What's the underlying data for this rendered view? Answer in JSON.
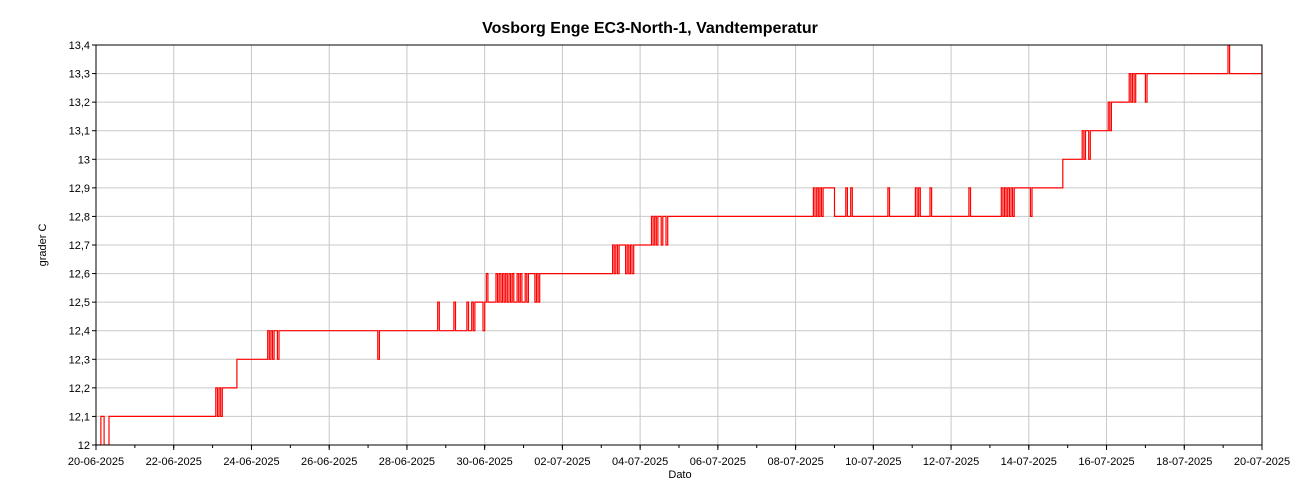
{
  "chart_data": {
    "type": "line",
    "title": "Vosborg Enge EC3-North-1, Vandtemperatur",
    "xlabel": "Dato",
    "ylabel": "grader C",
    "grid": true,
    "x_start": "2025-06-20",
    "x_end": "2025-07-20",
    "xticks": [
      "20-06-2025",
      "22-06-2025",
      "24-06-2025",
      "26-06-2025",
      "28-06-2025",
      "30-06-2025",
      "02-07-2025",
      "04-07-2025",
      "06-07-2025",
      "08-07-2025",
      "10-07-2025",
      "12-07-2025",
      "14-07-2025",
      "16-07-2025",
      "18-07-2025",
      "20-07-2025"
    ],
    "ylim": [
      12,
      13.4
    ],
    "yticks": [
      "12",
      "12,1",
      "12,2",
      "12,3",
      "12,4",
      "12,5",
      "12,6",
      "12,7",
      "12,8",
      "12,9",
      "13",
      "13,1",
      "13,2",
      "13,3",
      "13,4"
    ],
    "series": [
      {
        "color": "#ff0000",
        "points": [
          [
            "2025-06-20T00:00",
            12.0
          ],
          [
            "2025-06-20T03:00",
            12.1
          ],
          [
            "2025-06-20T05:00",
            12.0
          ],
          [
            "2025-06-20T07:00",
            12.0
          ],
          [
            "2025-06-20T08:00",
            12.1
          ],
          [
            "2025-06-21T12:00",
            12.1
          ],
          [
            "2025-06-22T12:00",
            12.1
          ],
          [
            "2025-06-23T00:00",
            12.1
          ],
          [
            "2025-06-23T02:00",
            12.2
          ],
          [
            "2025-06-23T03:00",
            12.1
          ],
          [
            "2025-06-23T04:00",
            12.2
          ],
          [
            "2025-06-23T05:00",
            12.1
          ],
          [
            "2025-06-23T06:00",
            12.2
          ],
          [
            "2025-06-23T12:00",
            12.2
          ],
          [
            "2025-06-23T15:00",
            12.3
          ],
          [
            "2025-06-24T08:00",
            12.3
          ],
          [
            "2025-06-24T10:00",
            12.4
          ],
          [
            "2025-06-24T11:00",
            12.3
          ],
          [
            "2025-06-24T12:00",
            12.4
          ],
          [
            "2025-06-24T13:00",
            12.3
          ],
          [
            "2025-06-24T14:00",
            12.4
          ],
          [
            "2025-06-24T16:00",
            12.3
          ],
          [
            "2025-06-24T17:00",
            12.4
          ],
          [
            "2025-06-26T00:00",
            12.4
          ],
          [
            "2025-06-27T05:00",
            12.4
          ],
          [
            "2025-06-27T06:00",
            12.3
          ],
          [
            "2025-06-27T07:00",
            12.4
          ],
          [
            "2025-06-28T18:00",
            12.4
          ],
          [
            "2025-06-28T19:00",
            12.5
          ],
          [
            "2025-06-28T20:00",
            12.4
          ],
          [
            "2025-06-29T04:00",
            12.4
          ],
          [
            "2025-06-29T05:00",
            12.5
          ],
          [
            "2025-06-29T06:00",
            12.4
          ],
          [
            "2025-06-29T12:00",
            12.4
          ],
          [
            "2025-06-29T13:00",
            12.5
          ],
          [
            "2025-06-29T14:00",
            12.4
          ],
          [
            "2025-06-29T16:00",
            12.5
          ],
          [
            "2025-06-29T17:00",
            12.4
          ],
          [
            "2025-06-29T18:00",
            12.5
          ],
          [
            "2025-06-29T23:00",
            12.4
          ],
          [
            "2025-06-30T00:00",
            12.5
          ],
          [
            "2025-06-30T01:00",
            12.6
          ],
          [
            "2025-06-30T02:00",
            12.5
          ],
          [
            "2025-06-30T06:00",
            12.5
          ],
          [
            "2025-06-30T07:00",
            12.6
          ],
          [
            "2025-06-30T08:00",
            12.5
          ],
          [
            "2025-06-30T09:00",
            12.6
          ],
          [
            "2025-06-30T10:00",
            12.5
          ],
          [
            "2025-06-30T11:00",
            12.6
          ],
          [
            "2025-06-30T12:00",
            12.5
          ],
          [
            "2025-06-30T13:00",
            12.6
          ],
          [
            "2025-06-30T14:00",
            12.5
          ],
          [
            "2025-06-30T15:00",
            12.6
          ],
          [
            "2025-06-30T16:00",
            12.5
          ],
          [
            "2025-06-30T17:00",
            12.6
          ],
          [
            "2025-06-30T18:00",
            12.5
          ],
          [
            "2025-06-30T20:00",
            12.6
          ],
          [
            "2025-06-30T21:00",
            12.5
          ],
          [
            "2025-06-30T22:00",
            12.6
          ],
          [
            "2025-06-30T23:00",
            12.5
          ],
          [
            "2025-07-01T01:00",
            12.6
          ],
          [
            "2025-07-01T02:00",
            12.5
          ],
          [
            "2025-07-01T03:00",
            12.6
          ],
          [
            "2025-07-01T06:00",
            12.6
          ],
          [
            "2025-07-01T07:00",
            12.5
          ],
          [
            "2025-07-01T08:00",
            12.6
          ],
          [
            "2025-07-01T09:00",
            12.5
          ],
          [
            "2025-07-01T10:00",
            12.6
          ],
          [
            "2025-07-02T00:00",
            12.6
          ],
          [
            "2025-07-03T06:00",
            12.6
          ],
          [
            "2025-07-03T07:00",
            12.7
          ],
          [
            "2025-07-03T08:00",
            12.6
          ],
          [
            "2025-07-03T09:00",
            12.7
          ],
          [
            "2025-07-03T10:00",
            12.6
          ],
          [
            "2025-07-03T11:00",
            12.7
          ],
          [
            "2025-07-03T14:00",
            12.7
          ],
          [
            "2025-07-03T15:00",
            12.6
          ],
          [
            "2025-07-03T16:00",
            12.7
          ],
          [
            "2025-07-03T17:00",
            12.6
          ],
          [
            "2025-07-03T18:00",
            12.7
          ],
          [
            "2025-07-03T19:00",
            12.6
          ],
          [
            "2025-07-03T20:00",
            12.7
          ],
          [
            "2025-07-04T06:00",
            12.7
          ],
          [
            "2025-07-04T07:00",
            12.8
          ],
          [
            "2025-07-04T08:00",
            12.7
          ],
          [
            "2025-07-04T09:00",
            12.8
          ],
          [
            "2025-07-04T10:00",
            12.7
          ],
          [
            "2025-07-04T11:00",
            12.8
          ],
          [
            "2025-07-04T13:00",
            12.7
          ],
          [
            "2025-07-04T14:00",
            12.8
          ],
          [
            "2025-07-04T16:00",
            12.7
          ],
          [
            "2025-07-04T17:00",
            12.8
          ],
          [
            "2025-07-08T10:00",
            12.8
          ],
          [
            "2025-07-08T11:00",
            12.9
          ],
          [
            "2025-07-08T12:00",
            12.8
          ],
          [
            "2025-07-08T13:00",
            12.9
          ],
          [
            "2025-07-08T14:00",
            12.8
          ],
          [
            "2025-07-08T15:00",
            12.9
          ],
          [
            "2025-07-08T16:00",
            12.8
          ],
          [
            "2025-07-08T17:00",
            12.9
          ],
          [
            "2025-07-09T00:00",
            12.8
          ],
          [
            "2025-07-09T06:00",
            12.8
          ],
          [
            "2025-07-09T07:00",
            12.9
          ],
          [
            "2025-07-09T08:00",
            12.8
          ],
          [
            "2025-07-09T10:00",
            12.9
          ],
          [
            "2025-07-09T11:00",
            12.8
          ],
          [
            "2025-07-10T08:00",
            12.8
          ],
          [
            "2025-07-10T09:00",
            12.9
          ],
          [
            "2025-07-10T10:00",
            12.8
          ],
          [
            "2025-07-11T01:00",
            12.8
          ],
          [
            "2025-07-11T02:00",
            12.9
          ],
          [
            "2025-07-11T03:00",
            12.8
          ],
          [
            "2025-07-11T04:00",
            12.9
          ],
          [
            "2025-07-11T05:00",
            12.8
          ],
          [
            "2025-07-11T10:00",
            12.8
          ],
          [
            "2025-07-11T11:00",
            12.9
          ],
          [
            "2025-07-11T12:00",
            12.8
          ],
          [
            "2025-07-12T10:00",
            12.8
          ],
          [
            "2025-07-12T11:00",
            12.9
          ],
          [
            "2025-07-12T12:00",
            12.8
          ],
          [
            "2025-07-13T06:00",
            12.8
          ],
          [
            "2025-07-13T07:00",
            12.9
          ],
          [
            "2025-07-13T08:00",
            12.8
          ],
          [
            "2025-07-13T09:00",
            12.9
          ],
          [
            "2025-07-13T10:00",
            12.8
          ],
          [
            "2025-07-13T11:00",
            12.9
          ],
          [
            "2025-07-13T12:00",
            12.8
          ],
          [
            "2025-07-13T13:00",
            12.9
          ],
          [
            "2025-07-13T14:00",
            12.8
          ],
          [
            "2025-07-13T15:00",
            12.9
          ],
          [
            "2025-07-14T00:00",
            12.9
          ],
          [
            "2025-07-14T01:00",
            12.8
          ],
          [
            "2025-07-14T02:00",
            12.9
          ],
          [
            "2025-07-14T20:00",
            12.9
          ],
          [
            "2025-07-14T21:00",
            13.0
          ],
          [
            "2025-07-15T08:00",
            13.0
          ],
          [
            "2025-07-15T09:00",
            13.1
          ],
          [
            "2025-07-15T10:00",
            13.0
          ],
          [
            "2025-07-15T11:00",
            13.1
          ],
          [
            "2025-07-15T13:00",
            13.0
          ],
          [
            "2025-07-15T14:00",
            13.1
          ],
          [
            "2025-07-16T00:00",
            13.1
          ],
          [
            "2025-07-16T01:00",
            13.2
          ],
          [
            "2025-07-16T02:00",
            13.1
          ],
          [
            "2025-07-16T03:00",
            13.2
          ],
          [
            "2025-07-16T13:00",
            13.2
          ],
          [
            "2025-07-16T14:00",
            13.3
          ],
          [
            "2025-07-16T15:00",
            13.2
          ],
          [
            "2025-07-16T16:00",
            13.3
          ],
          [
            "2025-07-16T17:00",
            13.2
          ],
          [
            "2025-07-16T18:00",
            13.3
          ],
          [
            "2025-07-16T23:00",
            13.3
          ],
          [
            "2025-07-17T00:00",
            13.2
          ],
          [
            "2025-07-17T01:00",
            13.3
          ],
          [
            "2025-07-19T02:00",
            13.3
          ],
          [
            "2025-07-19T03:00",
            13.4
          ],
          [
            "2025-07-19T04:00",
            13.3
          ],
          [
            "2025-07-19T23:00",
            13.3
          ],
          [
            "2025-07-20T00:00",
            13.4
          ]
        ]
      }
    ]
  }
}
